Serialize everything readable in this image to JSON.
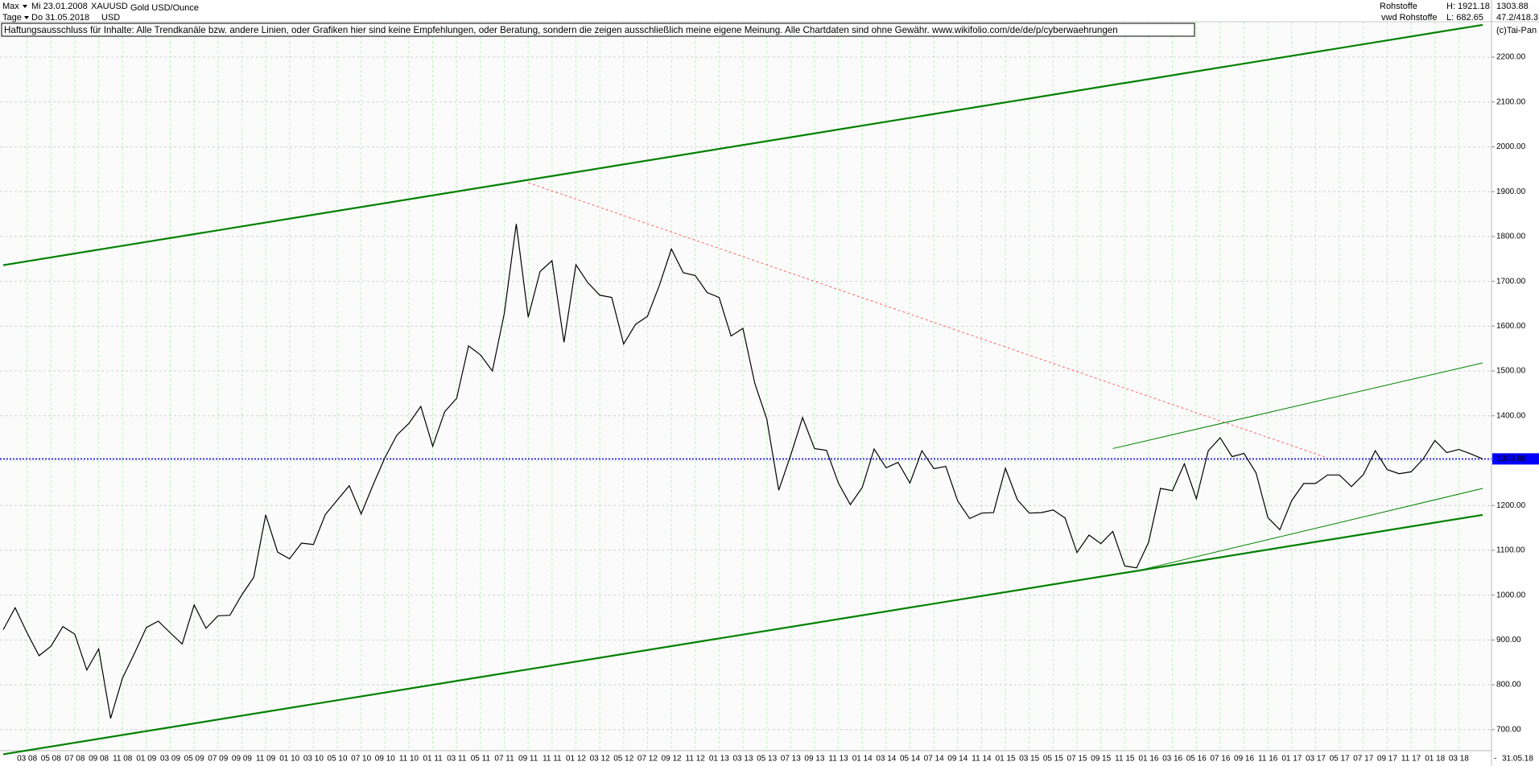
{
  "header": {
    "range": "Max",
    "start": "Mi 23.01.2008",
    "symbol": "XAUUSD",
    "name": "Gold USD/Ounce",
    "period": "Tage",
    "end": "Do 31.05.2018",
    "currency": "USD",
    "group": "Rohstoffe",
    "high": "H: 1921.18",
    "last": "1303.88",
    "source": "vwd Rohstoffe",
    "low": "L: 682.65",
    "ratio": "47.2/418.3",
    "copyright": "(c)Tai-Pan",
    "disclaimer": "Haftungsausschluss für Inhalte: Alle Trendkanäle bzw. andere Linien, oder Grafiken hier sind keine Empfehlungen, oder Beratung, sondern die zeigen ausschließlich meine eigene Meinung. Alle Chartdaten sind ohne Gewähr.  www.wikifolio.com/de/de/p/cyberwaehrungen",
    "end_label": "31.05.18"
  },
  "chart_data": {
    "type": "line",
    "x": [
      "2008-01",
      "2008-02",
      "2008-03",
      "2008-04",
      "2008-05",
      "2008-06",
      "2008-07",
      "2008-08",
      "2008-09",
      "2008-10",
      "2008-11",
      "2008-12",
      "2009-01",
      "2009-02",
      "2009-03",
      "2009-04",
      "2009-05",
      "2009-06",
      "2009-07",
      "2009-08",
      "2009-09",
      "2009-10",
      "2009-11",
      "2009-12",
      "2010-01",
      "2010-02",
      "2010-03",
      "2010-04",
      "2010-05",
      "2010-06",
      "2010-07",
      "2010-08",
      "2010-09",
      "2010-10",
      "2010-11",
      "2010-12",
      "2011-01",
      "2011-02",
      "2011-03",
      "2011-04",
      "2011-05",
      "2011-06",
      "2011-07",
      "2011-08",
      "2011-09",
      "2011-10",
      "2011-11",
      "2011-12",
      "2012-01",
      "2012-02",
      "2012-03",
      "2012-04",
      "2012-05",
      "2012-06",
      "2012-07",
      "2012-08",
      "2012-09",
      "2012-10",
      "2012-11",
      "2012-12",
      "2013-01",
      "2013-02",
      "2013-03",
      "2013-04",
      "2013-05",
      "2013-06",
      "2013-07",
      "2013-08",
      "2013-09",
      "2013-10",
      "2013-11",
      "2013-12",
      "2014-01",
      "2014-02",
      "2014-03",
      "2014-04",
      "2014-05",
      "2014-06",
      "2014-07",
      "2014-08",
      "2014-09",
      "2014-10",
      "2014-11",
      "2014-12",
      "2015-01",
      "2015-02",
      "2015-03",
      "2015-04",
      "2015-05",
      "2015-06",
      "2015-07",
      "2015-08",
      "2015-09",
      "2015-10",
      "2015-11",
      "2015-12",
      "2016-01",
      "2016-02",
      "2016-03",
      "2016-04",
      "2016-05",
      "2016-06",
      "2016-07",
      "2016-08",
      "2016-09",
      "2016-10",
      "2016-11",
      "2016-12",
      "2017-01",
      "2017-02",
      "2017-03",
      "2017-04",
      "2017-05",
      "2017-06",
      "2017-07",
      "2017-08",
      "2017-09",
      "2017-10",
      "2017-11",
      "2017-12",
      "2018-01",
      "2018-02",
      "2018-03",
      "2018-04",
      "2018-05"
    ],
    "series": [
      {
        "name": "XAUUSD",
        "color": "#000000",
        "values": [
          923,
          972,
          916,
          865,
          886,
          930,
          913,
          833,
          880,
          725,
          815,
          870,
          928,
          942,
          916,
          891,
          978,
          926,
          954,
          955,
          1001,
          1040,
          1179,
          1096,
          1081,
          1116,
          1113,
          1180,
          1212,
          1244,
          1181,
          1246,
          1307,
          1357,
          1383,
          1421,
          1332,
          1409,
          1439,
          1556,
          1536,
          1500,
          1628,
          1828,
          1620,
          1722,
          1746,
          1564,
          1737,
          1697,
          1669,
          1664,
          1560,
          1604,
          1622,
          1691,
          1772,
          1719,
          1713,
          1675,
          1664,
          1578,
          1595,
          1472,
          1393,
          1234,
          1312,
          1396,
          1327,
          1323,
          1250,
          1202,
          1240,
          1326,
          1284,
          1296,
          1250,
          1322,
          1282,
          1287,
          1210,
          1171,
          1183,
          1184,
          1283,
          1213,
          1183,
          1184,
          1190,
          1172,
          1095,
          1134,
          1115,
          1142,
          1065,
          1061,
          1118,
          1238,
          1233,
          1293,
          1215,
          1322,
          1351,
          1309,
          1316,
          1273,
          1173,
          1146,
          1211,
          1249,
          1249,
          1268,
          1268,
          1242,
          1269,
          1322,
          1280,
          1271,
          1275,
          1303,
          1345,
          1318,
          1325,
          1315,
          1303.88
        ]
      }
    ],
    "trendlines": [
      {
        "color": "#008000",
        "weight": "bold",
        "x": [
          "2008-01",
          "2018-05"
        ],
        "values": [
          1736,
          2272
        ]
      },
      {
        "color": "#008000",
        "weight": "bold",
        "x": [
          "2008-01",
          "2018-05"
        ],
        "values": [
          645,
          1179
        ]
      },
      {
        "color": "#ff6060",
        "weight": "dashed",
        "x": [
          "2011-09",
          "2017-04"
        ],
        "values": [
          1920,
          1306
        ]
      },
      {
        "color": "#008000",
        "weight": "thin",
        "x": [
          "2015-10",
          "2018-05"
        ],
        "values": [
          1327,
          1518
        ]
      },
      {
        "color": "#008000",
        "weight": "thin",
        "x": [
          "2015-12",
          "2018-05"
        ],
        "values": [
          1054,
          1238
        ]
      }
    ],
    "last_price": {
      "value": 1303.88,
      "color": "#0000ff"
    },
    "xlim": [
      "2008-01",
      "2018-05"
    ],
    "xticks": [
      {
        "value": "2008-03",
        "label": "03 08"
      },
      {
        "value": "2008-05",
        "label": "05 08"
      },
      {
        "value": "2008-07",
        "label": "07 08"
      },
      {
        "value": "2008-09",
        "label": "09 08"
      },
      {
        "value": "2008-11",
        "label": "11 08"
      },
      {
        "value": "2009-01",
        "label": "01 09"
      },
      {
        "value": "2009-03",
        "label": "03 09"
      },
      {
        "value": "2009-05",
        "label": "05 09"
      },
      {
        "value": "2009-07",
        "label": "07 09"
      },
      {
        "value": "2009-09",
        "label": "09 09"
      },
      {
        "value": "2009-11",
        "label": "11 09"
      },
      {
        "value": "2010-01",
        "label": "01 10"
      },
      {
        "value": "2010-03",
        "label": "03 10"
      },
      {
        "value": "2010-05",
        "label": "05 10"
      },
      {
        "value": "2010-07",
        "label": "07 10"
      },
      {
        "value": "2010-09",
        "label": "09 10"
      },
      {
        "value": "2010-11",
        "label": "11 10"
      },
      {
        "value": "2011-01",
        "label": "01 11"
      },
      {
        "value": "2011-03",
        "label": "03 11"
      },
      {
        "value": "2011-05",
        "label": "05 11"
      },
      {
        "value": "2011-07",
        "label": "07 11"
      },
      {
        "value": "2011-09",
        "label": "09 11"
      },
      {
        "value": "2011-11",
        "label": "11 11"
      },
      {
        "value": "2012-01",
        "label": "01 12"
      },
      {
        "value": "2012-03",
        "label": "03 12"
      },
      {
        "value": "2012-05",
        "label": "05 12"
      },
      {
        "value": "2012-07",
        "label": "07 12"
      },
      {
        "value": "2012-09",
        "label": "09 12"
      },
      {
        "value": "2012-11",
        "label": "11 12"
      },
      {
        "value": "2013-01",
        "label": "01 13"
      },
      {
        "value": "2013-03",
        "label": "03 13"
      },
      {
        "value": "2013-05",
        "label": "05 13"
      },
      {
        "value": "2013-07",
        "label": "07 13"
      },
      {
        "value": "2013-09",
        "label": "09 13"
      },
      {
        "value": "2013-11",
        "label": "11 13"
      },
      {
        "value": "2014-01",
        "label": "01 14"
      },
      {
        "value": "2014-03",
        "label": "03 14"
      },
      {
        "value": "2014-05",
        "label": "05 14"
      },
      {
        "value": "2014-07",
        "label": "07 14"
      },
      {
        "value": "2014-09",
        "label": "09 14"
      },
      {
        "value": "2014-11",
        "label": "11 14"
      },
      {
        "value": "2015-01",
        "label": "01 15"
      },
      {
        "value": "2015-03",
        "label": "03 15"
      },
      {
        "value": "2015-05",
        "label": "05 15"
      },
      {
        "value": "2015-07",
        "label": "07 15"
      },
      {
        "value": "2015-09",
        "label": "09 15"
      },
      {
        "value": "2015-11",
        "label": "11 15"
      },
      {
        "value": "2016-01",
        "label": "01 16"
      },
      {
        "value": "2016-03",
        "label": "03 16"
      },
      {
        "value": "2016-05",
        "label": "05 16"
      },
      {
        "value": "2016-07",
        "label": "07 16"
      },
      {
        "value": "2016-09",
        "label": "09 16"
      },
      {
        "value": "2016-11",
        "label": "11 16"
      },
      {
        "value": "2017-01",
        "label": "01 17"
      },
      {
        "value": "2017-03",
        "label": "03 17"
      },
      {
        "value": "2017-05",
        "label": "05 17"
      },
      {
        "value": "2017-07",
        "label": "07 17"
      },
      {
        "value": "2017-09",
        "label": "09 17"
      },
      {
        "value": "2017-11",
        "label": "11 17"
      },
      {
        "value": "2018-01",
        "label": "01 18"
      },
      {
        "value": "2018-03",
        "label": "03 18"
      }
    ],
    "ylim": [
      653,
      2279
    ],
    "yticks": [
      {
        "value": 700,
        "label": "700.00"
      },
      {
        "value": 800,
        "label": "800.00"
      },
      {
        "value": 900,
        "label": "900.00"
      },
      {
        "value": 1000,
        "label": "1000.00"
      },
      {
        "value": 1100,
        "label": "1100.00"
      },
      {
        "value": 1200,
        "label": "1200.00"
      },
      {
        "value": 1300,
        "label": "1300.00"
      },
      {
        "value": 1400,
        "label": "1400.00"
      },
      {
        "value": 1500,
        "label": "1500.00"
      },
      {
        "value": 1600,
        "label": "1600.00"
      },
      {
        "value": 1700,
        "label": "1700.00"
      },
      {
        "value": 1800,
        "label": "1800.00"
      },
      {
        "value": 1900,
        "label": "1900.00"
      },
      {
        "value": 2000,
        "label": "2000.00"
      },
      {
        "value": 2100,
        "label": "2100.00"
      },
      {
        "value": 2200,
        "label": "2200.00"
      }
    ],
    "grid": true
  }
}
